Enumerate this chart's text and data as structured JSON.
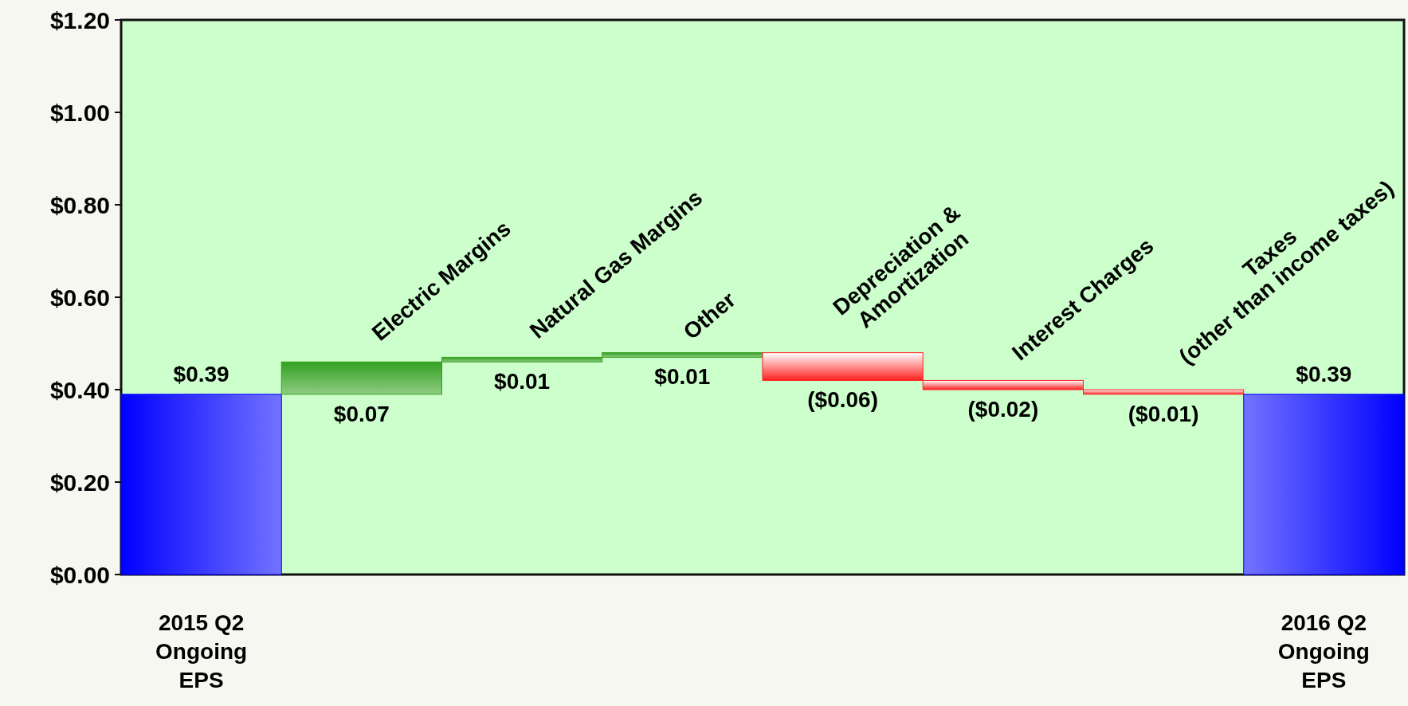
{
  "chart_data": {
    "type": "bar",
    "categories": [
      "2015 Q2\nOngoing\nEPS",
      null,
      null,
      null,
      null,
      null,
      null,
      "2016 Q2\nOngoing\nEPS"
    ],
    "annotations": [
      "Electric Margins",
      "Natural Gas Margins",
      "Other",
      "Depreciation &\nAmortization",
      "Interest Charges",
      "Taxes\n(other than income taxes)"
    ],
    "values": [
      0.39,
      0.07,
      0.01,
      0.01,
      -0.06,
      -0.02,
      -0.01,
      0.39
    ],
    "base": [
      0,
      0.39,
      0.46,
      0.47,
      0.48,
      0.42,
      0.4,
      0
    ],
    "colors": [
      "#0000ff",
      "#33a020",
      "#33a020",
      "#33a020",
      "#ff2020",
      "#ff2020",
      "#ff2020",
      "#0000ff"
    ],
    "value_labels": [
      "$0.39",
      "$0.07",
      "$0.01",
      "$0.01",
      "($0.06)",
      "($0.02)",
      "($0.01)",
      "$0.39"
    ],
    "ylim": [
      0,
      1.2
    ],
    "yticks": [
      {
        "value": 0,
        "label": "$0.00"
      },
      {
        "value": 0.2,
        "label": "$0.20"
      },
      {
        "value": 0.4,
        "label": "$0.40"
      },
      {
        "value": 0.6,
        "label": "$0.60"
      },
      {
        "value": 0.8,
        "label": "$0.80"
      },
      {
        "value": 1.0,
        "label": "$1.00"
      },
      {
        "value": 1.2,
        "label": "$1.20"
      }
    ],
    "grid": false
  }
}
